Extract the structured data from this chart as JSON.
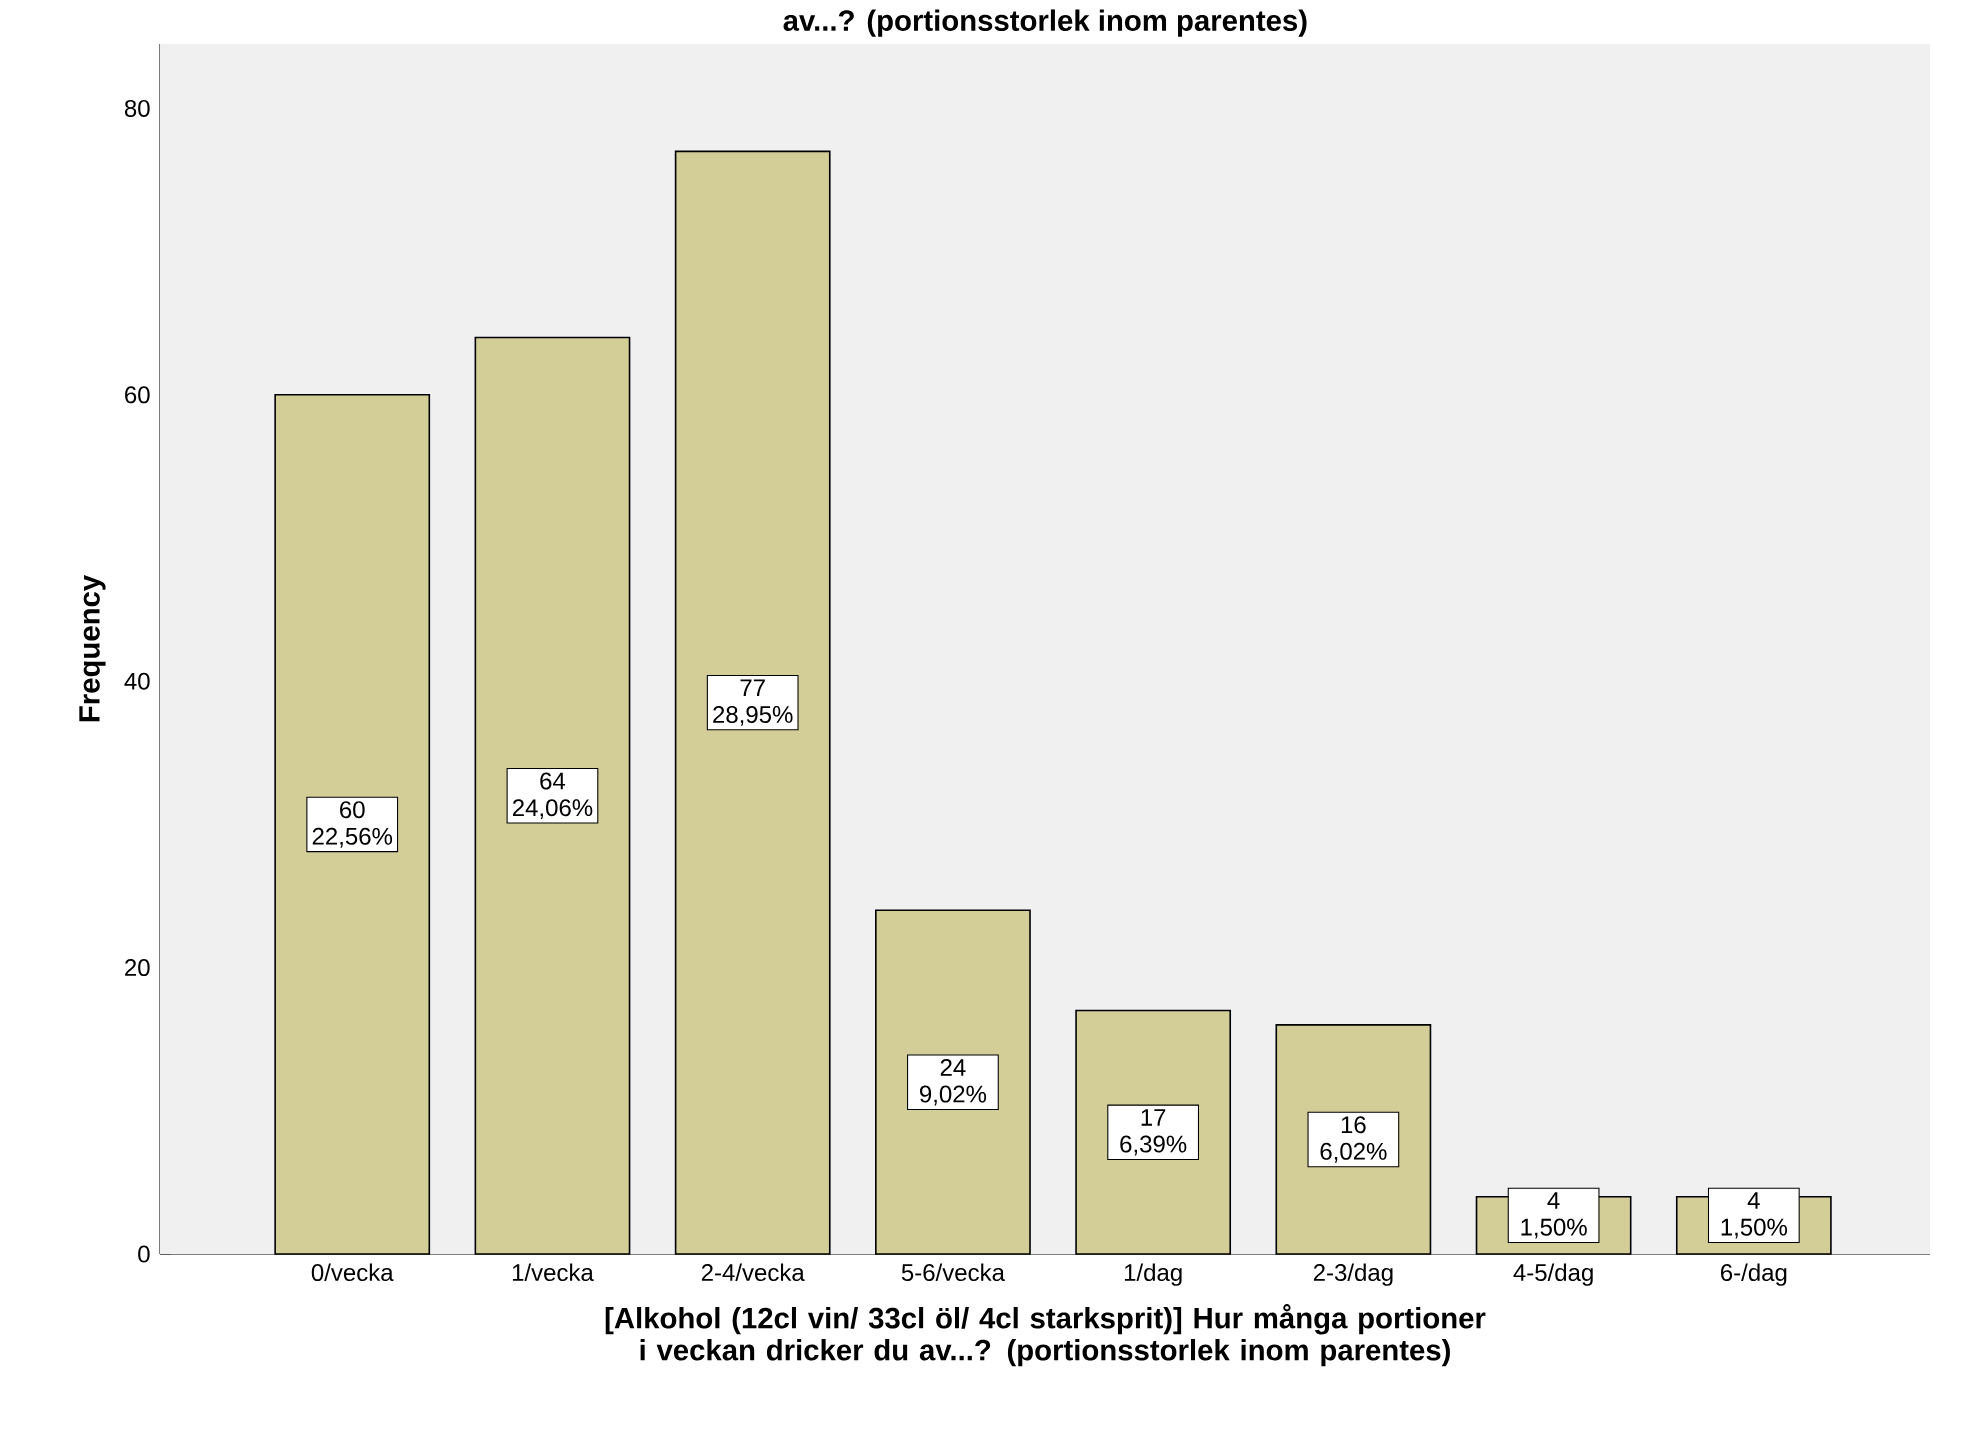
{
  "chart_data": {
    "type": "bar",
    "title": "av...? (portionsstorlek inom parentes)",
    "xlabel": "[Alkohol (12cl vin/ 33cl öl/ 4cl starksprit)] Hur många portioner i veckan dricker du av...? (portionsstorlek inom parentes)",
    "ylabel": "Frequency",
    "categories": [
      "0/vecka",
      "1/vecka",
      "2-4/vecka",
      "5-6/vecka",
      "1/dag",
      "2-3/dag",
      "4-5/dag",
      "6-/dag"
    ],
    "values": [
      60,
      64,
      77,
      24,
      17,
      16,
      4,
      4
    ],
    "value_labels": [
      "60 22,56%",
      "64 24,06%",
      "77 28,95%",
      "24 9,02%",
      "17 6,39%",
      "16 6,02%",
      "4 1,50%",
      "4 1,50%"
    ],
    "color": "#d3ce97",
    "ylim": [
      0,
      84.5
    ],
    "yticks": [
      0,
      20,
      40,
      60,
      80
    ]
  }
}
